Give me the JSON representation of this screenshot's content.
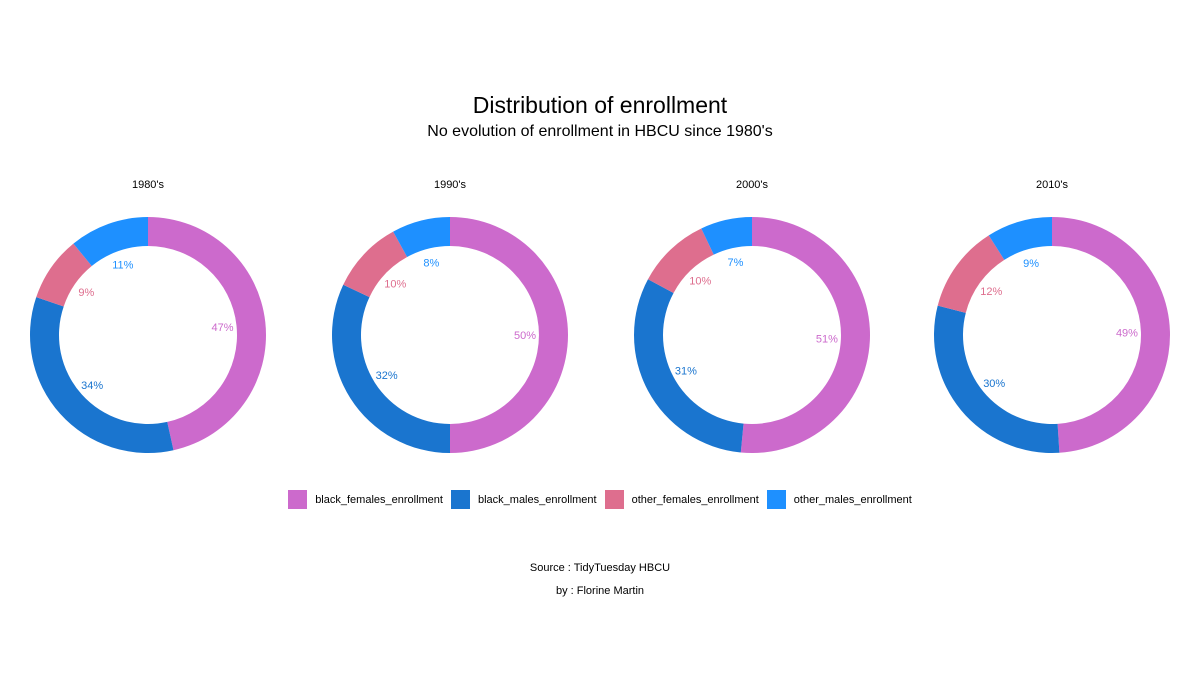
{
  "colors": {
    "black_females_enrollment": "#CC6ACC",
    "black_males_enrollment": "#1A75CF",
    "other_females_enrollment": "#DE6E8E",
    "other_males_enrollment": "#1E90FF"
  },
  "chart_data": {
    "type": "pie",
    "variant": "donut",
    "title": "Distribution of enrollment",
    "subtitle": "No evolution of enrollment in HBCU since 1980's",
    "series_order": [
      "black_females_enrollment",
      "black_males_enrollment",
      "other_females_enrollment",
      "other_males_enrollment"
    ],
    "legend": {
      "placement": "bottom",
      "entries": [
        "black_females_enrollment",
        "black_males_enrollment",
        "other_females_enrollment",
        "other_males_enrollment"
      ]
    },
    "panels": [
      {
        "label": "1980's",
        "values": [
          47,
          34,
          9,
          11
        ],
        "labels": [
          "47%",
          "34%",
          "9%",
          "11%"
        ]
      },
      {
        "label": "1990's",
        "values": [
          50,
          32,
          10,
          8
        ],
        "labels": [
          "50%",
          "32%",
          "10%",
          "8%"
        ]
      },
      {
        "label": "2000's",
        "values": [
          51,
          31,
          10,
          7
        ],
        "labels": [
          "51%",
          "31%",
          "10%",
          "7%"
        ]
      },
      {
        "label": "2010's",
        "values": [
          49,
          30,
          12,
          9
        ],
        "labels": [
          "49%",
          "30%",
          "12%",
          "9%"
        ]
      }
    ]
  },
  "caption": {
    "source": "Source : TidyTuesday HBCU",
    "author": "by : Florine Martin"
  }
}
